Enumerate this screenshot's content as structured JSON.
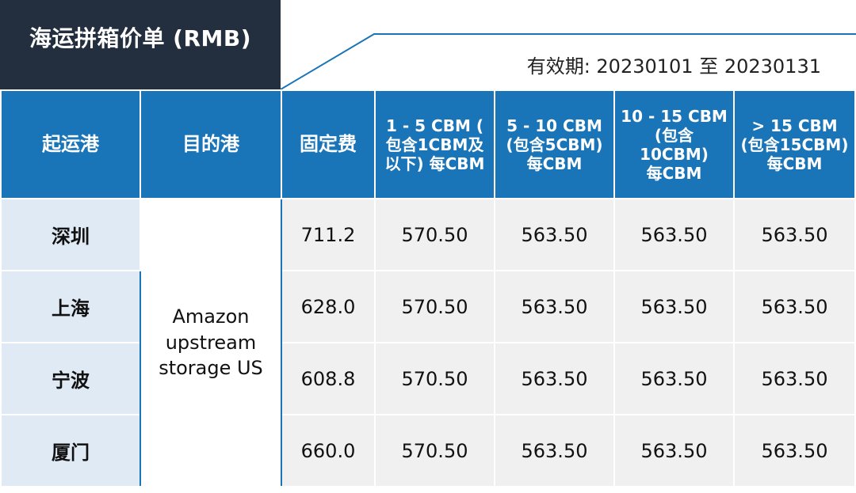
{
  "title": "海运拼箱价单 (RMB)",
  "validity": "有效期: 20230101 至 20230131",
  "headers": {
    "origin": "起运港",
    "destination": "目的港",
    "fixed_fee": "固定费",
    "tier1": [
      "1 - 5 CBM (",
      "包含1CBM及",
      "以下) 每CBM"
    ],
    "tier2": [
      "5 - 10 CBM",
      "(包含5CBM)",
      "每CBM"
    ],
    "tier3": [
      "10 - 15 CBM",
      "(包含",
      "10CBM)",
      "每CBM"
    ],
    "tier4": [
      "> 15 CBM",
      "(包含15CBM)",
      "每CBM"
    ]
  },
  "destination": [
    "Amazon",
    "upstream",
    "storage US"
  ],
  "rows": [
    {
      "origin": "深圳",
      "fixed": "711.2",
      "t1": "570.50",
      "t2": "563.50",
      "t3": "563.50",
      "t4": "563.50"
    },
    {
      "origin": "上海",
      "fixed": "628.0",
      "t1": "570.50",
      "t2": "563.50",
      "t3": "563.50",
      "t4": "563.50"
    },
    {
      "origin": "宁波",
      "fixed": "608.8",
      "t1": "570.50",
      "t2": "563.50",
      "t3": "563.50",
      "t4": "563.50"
    },
    {
      "origin": "厦门",
      "fixed": "660.0",
      "t1": "570.50",
      "t2": "563.50",
      "t3": "563.50",
      "t4": "563.50"
    }
  ],
  "colors": {
    "header_bg": "#1a74b8",
    "title_bg": "#232f3e",
    "origin_bg": "#e0eaf5",
    "cell_bg": "#f0f0f0"
  }
}
